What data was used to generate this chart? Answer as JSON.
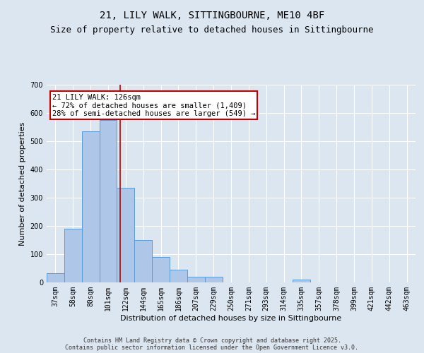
{
  "title_line1": "21, LILY WALK, SITTINGBOURNE, ME10 4BF",
  "title_line2": "Size of property relative to detached houses in Sittingbourne",
  "xlabel": "Distribution of detached houses by size in Sittingbourne",
  "ylabel": "Number of detached properties",
  "categories": [
    "37sqm",
    "58sqm",
    "80sqm",
    "101sqm",
    "122sqm",
    "144sqm",
    "165sqm",
    "186sqm",
    "207sqm",
    "229sqm",
    "250sqm",
    "271sqm",
    "293sqm",
    "314sqm",
    "335sqm",
    "357sqm",
    "378sqm",
    "399sqm",
    "421sqm",
    "442sqm",
    "463sqm"
  ],
  "values": [
    32,
    190,
    535,
    575,
    335,
    150,
    90,
    45,
    20,
    20,
    0,
    0,
    0,
    0,
    10,
    0,
    0,
    0,
    0,
    0,
    0
  ],
  "bar_color": "#aec6e8",
  "bar_edge_color": "#5b9bd5",
  "vline_color": "#c00000",
  "annotation_text": "21 LILY WALK: 126sqm\n← 72% of detached houses are smaller (1,409)\n28% of semi-detached houses are larger (549) →",
  "annotation_box_color": "#c00000",
  "background_color": "#dce6f1",
  "plot_bg_color": "#dce6f1",
  "ylim": [
    0,
    700
  ],
  "yticks": [
    0,
    100,
    200,
    300,
    400,
    500,
    600,
    700
  ],
  "footer": "Contains HM Land Registry data © Crown copyright and database right 2025.\nContains public sector information licensed under the Open Government Licence v3.0.",
  "title_fontsize": 10,
  "subtitle_fontsize": 9,
  "axis_label_fontsize": 8,
  "tick_fontsize": 7,
  "annotation_fontsize": 7.5,
  "footer_fontsize": 6
}
